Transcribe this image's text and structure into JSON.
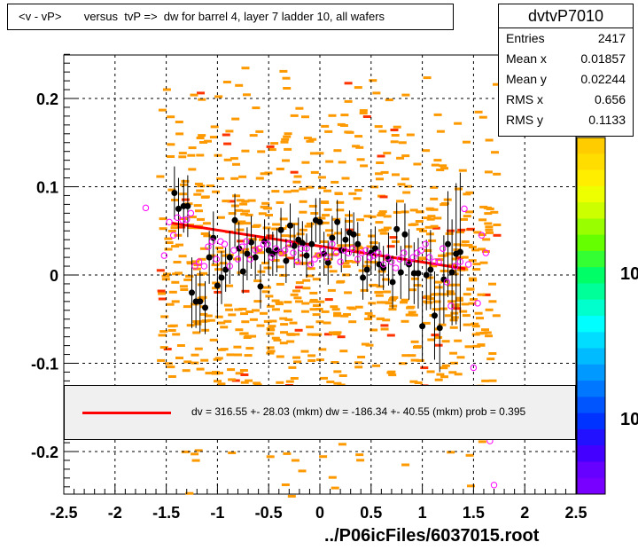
{
  "title": "<v - vP>       versus  tvP =>  dw for barrel 4, layer 7 ladder 10, all wafers",
  "stats": {
    "name": "dvtvP7010",
    "rows": [
      {
        "label": "Entries",
        "value": "2417"
      },
      {
        "label": "Mean x",
        "value": "0.01857"
      },
      {
        "label": "Mean y",
        "value": "0.02244"
      },
      {
        "label": "RMS x",
        "value": "0.656"
      },
      {
        "label": "RMS y",
        "value": "0.1133"
      }
    ]
  },
  "legend": {
    "text": "dv =  316.55 +- 28.03 (mkm) dw = -186.34 +- 40.55 (mkm) prob = 0.395",
    "line_color": "#ff0000"
  },
  "footer": "../P06icFiles/6037015.root",
  "palette_labels": [
    "10",
    "10"
  ],
  "colors": {
    "fit": "#ff0000",
    "black_points": "#000000",
    "magenta_points": "#ff00ff",
    "hist_orange": "#ff9900",
    "hist_red": "#ff3300"
  },
  "chart_data": {
    "type": "scatter",
    "xlim": [
      -2.5,
      2.5
    ],
    "ylim": [
      -0.25,
      0.25
    ],
    "x_ticks": [
      "-2.5",
      "-2",
      "-1.5",
      "-1",
      "-0.5",
      "0",
      "0.5",
      "1",
      "1.5",
      "2",
      "2.5"
    ],
    "y_ticks": [
      "-0.2",
      "-0.1",
      "0",
      "0.1",
      "0.2"
    ],
    "grid": true,
    "fit_line": {
      "x": [
        -1.45,
        1.42
      ],
      "y": [
        0.059,
        0.007
      ]
    },
    "series": [
      {
        "marker": "filled-circle",
        "x": [
          -1.42,
          -1.38,
          -1.33,
          -1.29,
          -1.25,
          -1.21,
          -1.17,
          -1.12,
          -1.08,
          -1.04,
          -1.0,
          -0.96,
          -0.92,
          -0.88,
          -0.83,
          -0.79,
          -0.75,
          -0.71,
          -0.67,
          -0.63,
          -0.58,
          -0.54,
          -0.5,
          -0.46,
          -0.42,
          -0.38,
          -0.33,
          -0.29,
          -0.25,
          -0.21,
          -0.17,
          -0.13,
          -0.08,
          -0.04,
          0.0,
          0.04,
          0.08,
          0.12,
          0.17,
          0.21,
          0.25,
          0.29,
          0.33,
          0.37,
          0.42,
          0.46,
          0.5,
          0.54,
          0.58,
          0.62,
          0.67,
          0.71,
          0.75,
          0.79,
          0.83,
          0.87,
          0.92,
          0.96,
          1.0,
          1.04,
          1.08,
          1.12,
          1.17,
          1.21,
          1.25,
          1.29,
          1.33,
          1.37
        ],
        "y": [
          0.093,
          0.075,
          0.078,
          0.078,
          -0.02,
          -0.03,
          -0.03,
          -0.037,
          0.02,
          0.042,
          -0.012,
          -0.003,
          0.006,
          0.02,
          0.062,
          0.03,
          0.004,
          0.024,
          0.037,
          0.02,
          -0.013,
          0.038,
          0.028,
          0.024,
          0.028,
          0.051,
          0.016,
          0.056,
          0.033,
          0.04,
          0.036,
          0.022,
          0.035,
          0.062,
          0.06,
          0.024,
          0.014,
          0.042,
          0.06,
          0.028,
          0.04,
          0.048,
          0.046,
          0.035,
          -0.003,
          0.006,
          0.025,
          0.03,
          0.012,
          0.008,
          0.018,
          -0.008,
          0.052,
          0.003,
          0.046,
          0.012,
          0.002,
          0.002,
          -0.058,
          0.0,
          0.006,
          -0.046,
          -0.06,
          -0.005,
          0.035,
          0.003,
          0.024,
          0.026
        ],
        "err": [
          0.03,
          0.035,
          0.03,
          0.035,
          0.04,
          0.03,
          0.035,
          0.03,
          0.03,
          0.03,
          0.035,
          0.03,
          0.025,
          0.03,
          0.03,
          0.03,
          0.025,
          0.03,
          0.03,
          0.025,
          0.025,
          0.025,
          0.025,
          0.025,
          0.025,
          0.025,
          0.025,
          0.025,
          0.025,
          0.025,
          0.025,
          0.025,
          0.025,
          0.025,
          0.025,
          0.025,
          0.025,
          0.025,
          0.025,
          0.025,
          0.025,
          0.025,
          0.025,
          0.025,
          0.025,
          0.025,
          0.025,
          0.025,
          0.025,
          0.025,
          0.03,
          0.03,
          0.03,
          0.03,
          0.035,
          0.04,
          0.035,
          0.04,
          0.04,
          0.04,
          0.045,
          0.05,
          0.05,
          0.05,
          0.06,
          0.06,
          0.08,
          0.09
        ]
      },
      {
        "marker": "open-circle",
        "x": [
          -1.7,
          -1.52,
          -1.47,
          -1.43,
          -1.39,
          -1.34,
          -1.3,
          -1.26,
          -1.22,
          -1.18,
          -1.13,
          -1.09,
          -1.05,
          -1.01,
          -0.97,
          -0.93,
          -0.88,
          -0.84,
          -0.8,
          -0.76,
          -0.72,
          -0.68,
          -0.63,
          -0.59,
          -0.55,
          -0.51,
          -0.47,
          -0.43,
          -0.38,
          -0.34,
          -0.3,
          -0.26,
          -0.22,
          -0.18,
          -0.13,
          -0.09,
          -0.05,
          -0.01,
          0.03,
          0.07,
          0.12,
          0.16,
          0.2,
          0.24,
          0.28,
          0.32,
          0.37,
          0.41,
          0.45,
          0.49,
          0.53,
          0.57,
          0.62,
          0.66,
          0.7,
          0.74,
          0.78,
          0.82,
          0.87,
          0.91,
          0.95,
          0.99,
          1.03,
          1.07,
          1.12,
          1.16,
          1.2,
          1.24,
          1.28,
          1.32,
          1.37,
          1.41,
          1.45,
          1.5,
          1.54,
          1.58,
          1.62,
          1.66,
          1.7
        ],
        "y": [
          0.076,
          0.022,
          0.06,
          0.045,
          0.065,
          0.062,
          0.063,
          0.07,
          0.01,
          0.015,
          0.01,
          0.032,
          0.038,
          0.018,
          0.038,
          0.035,
          0.01,
          0.028,
          0.018,
          0.032,
          0.038,
          0.018,
          0.028,
          0.03,
          0.035,
          0.035,
          0.02,
          0.03,
          0.025,
          0.028,
          0.035,
          0.025,
          0.015,
          0.03,
          0.03,
          0.012,
          0.018,
          0.022,
          0.028,
          0.02,
          0.035,
          0.025,
          0.015,
          0.028,
          0.025,
          0.03,
          0.018,
          0.025,
          0.028,
          0.02,
          0.022,
          0.025,
          0.012,
          0.02,
          0.015,
          0.008,
          0.018,
          0.025,
          0.015,
          0.02,
          0.025,
          0.028,
          0.035,
          0.02,
          0.015,
          0.015,
          0.03,
          -0.008,
          -0.035,
          0.01,
          0.015,
          0.075,
          0.012,
          -0.105,
          -0.032,
          0.045,
          0.025,
          -0.188,
          -0.238
        ]
      }
    ]
  }
}
